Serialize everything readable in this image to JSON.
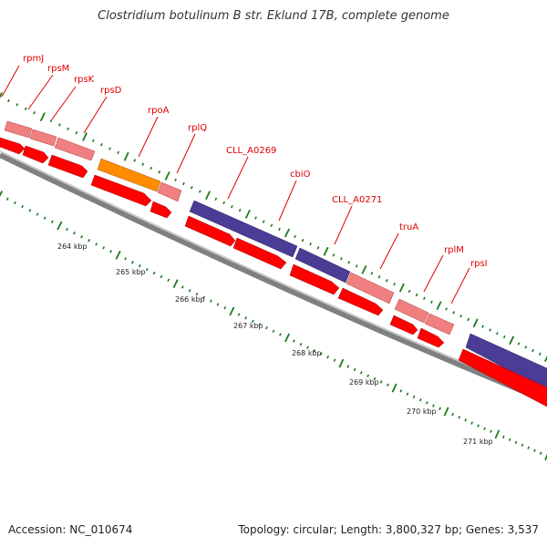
{
  "header": {
    "title": "Clostridium botulinum B str. Eklund 17B, complete genome"
  },
  "footer": {
    "accession": "Accession: NC_010674",
    "stats": "Topology: circular; Length: 3,800,327 bp; Genes: 3,537"
  },
  "colors": {
    "gene_label": "#e00000",
    "forward_gene": "#ff0000",
    "pale_gene": "#f08080",
    "orange_gene": "#ff8c00",
    "purple_gene": "#4b3c96",
    "tick": "#1a7a1a",
    "backbone": "#808080"
  },
  "genome_map": {
    "gene_labels": [
      "rpmJ",
      "rpsM",
      "rpsK",
      "rpsD",
      "rpoA",
      "rplQ",
      "CLL_A0269",
      "cbiO",
      "CLL_A0271",
      "truA",
      "rplM",
      "rpsI"
    ],
    "kbp_labels": [
      "264 kbp",
      "265 kbp",
      "266 kbp",
      "267 kbp",
      "268 kbp",
      "269 kbp",
      "270 kbp",
      "271 kbp"
    ]
  }
}
